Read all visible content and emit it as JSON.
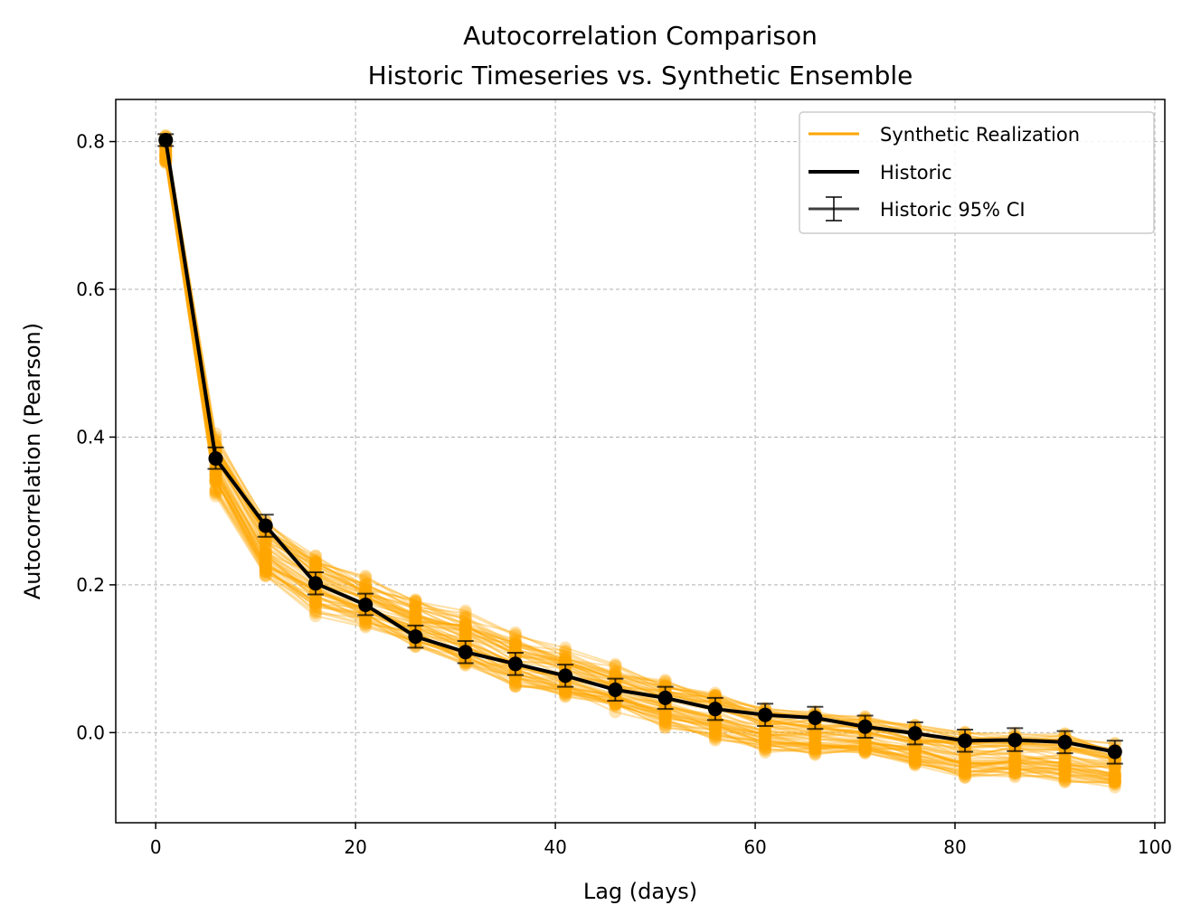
{
  "chart_data": {
    "type": "line",
    "title": "Autocorrelation Comparison",
    "subtitle": "Historic Timeseries vs. Synthetic Ensemble",
    "xlabel": "Lag (days)",
    "ylabel": "Autocorrelation (Pearson)",
    "xlim": [
      -4,
      101
    ],
    "ylim": [
      -0.122,
      0.857
    ],
    "x_ticks": [
      0,
      20,
      40,
      60,
      80,
      100
    ],
    "x_tick_labels": [
      "0",
      "20",
      "40",
      "60",
      "80",
      "100"
    ],
    "y_ticks": [
      0.0,
      0.2,
      0.4,
      0.6,
      0.8
    ],
    "y_tick_labels": [
      "0.0",
      "0.2",
      "0.4",
      "0.6",
      "0.8"
    ],
    "grid": true,
    "legend_position": "top-right",
    "x": [
      1,
      6,
      11,
      16,
      21,
      26,
      31,
      36,
      41,
      46,
      51,
      56,
      61,
      66,
      71,
      76,
      81,
      86,
      91,
      96
    ],
    "series": [
      {
        "name": "Historic",
        "color": "#000000",
        "values": [
          0.802,
          0.371,
          0.28,
          0.202,
          0.173,
          0.13,
          0.109,
          0.093,
          0.077,
          0.058,
          0.047,
          0.032,
          0.024,
          0.02,
          0.008,
          -0.001,
          -0.011,
          -0.01,
          -0.013,
          -0.026
        ],
        "ci_lower": [
          0.794,
          0.357,
          0.265,
          0.187,
          0.159,
          0.115,
          0.094,
          0.078,
          0.062,
          0.043,
          0.032,
          0.017,
          0.009,
          0.005,
          -0.007,
          -0.016,
          -0.026,
          -0.025,
          -0.028,
          -0.042
        ],
        "ci_upper": [
          0.81,
          0.386,
          0.295,
          0.217,
          0.188,
          0.145,
          0.124,
          0.108,
          0.092,
          0.073,
          0.062,
          0.047,
          0.039,
          0.035,
          0.023,
          0.014,
          0.004,
          0.006,
          0.002,
          -0.011
        ]
      }
    ],
    "synthetic_ensemble": {
      "name": "Synthetic Realization",
      "color": "#FFA500",
      "realizations": 60,
      "ensemble_lower": [
        0.77,
        0.318,
        0.203,
        0.156,
        0.14,
        0.112,
        0.083,
        0.057,
        0.043,
        0.027,
        0.006,
        -0.013,
        -0.03,
        -0.035,
        -0.033,
        -0.046,
        -0.062,
        -0.063,
        -0.068,
        -0.078
      ],
      "ensemble_upper": [
        0.812,
        0.411,
        0.298,
        0.255,
        0.215,
        0.185,
        0.17,
        0.14,
        0.12,
        0.095,
        0.077,
        0.064,
        0.04,
        0.035,
        0.027,
        0.015,
        0.007,
        0.005,
        0.004,
        -0.01
      ]
    },
    "legend": {
      "entries": [
        "Synthetic Realization",
        "Historic",
        "Historic 95% CI"
      ]
    }
  }
}
